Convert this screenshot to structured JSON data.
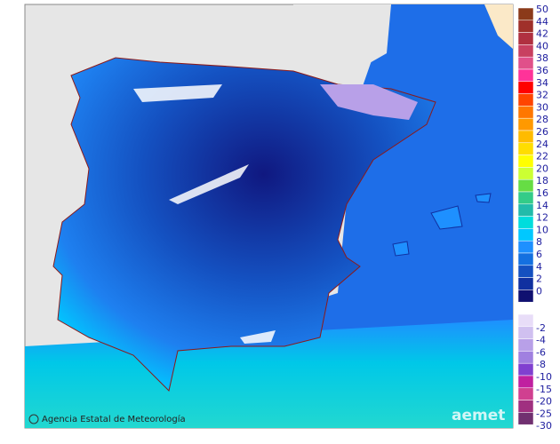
{
  "map": {
    "credit": "Agencia Estatal de Meteorología",
    "logo": "aemet",
    "legend": {
      "upper": [
        {
          "label": 50,
          "color": "#8b3a1a"
        },
        {
          "label": 44,
          "color": "#a0302a"
        },
        {
          "label": 42,
          "color": "#b03040"
        },
        {
          "label": 40,
          "color": "#c84060"
        },
        {
          "label": 38,
          "color": "#e0508a"
        },
        {
          "label": 36,
          "color": "#ff3399"
        },
        {
          "label": 34,
          "color": "#ff0000"
        },
        {
          "label": 32,
          "color": "#ff4500"
        },
        {
          "label": 30,
          "color": "#ff7700"
        },
        {
          "label": 28,
          "color": "#ff9900"
        },
        {
          "label": 26,
          "color": "#ffbb00"
        },
        {
          "label": 24,
          "color": "#ffdd00"
        },
        {
          "label": 22,
          "color": "#ffff00"
        },
        {
          "label": 20,
          "color": "#ccff33"
        },
        {
          "label": 18,
          "color": "#66dd44"
        },
        {
          "label": 16,
          "color": "#33cc88"
        },
        {
          "label": 14,
          "color": "#22bbaa"
        },
        {
          "label": 12,
          "color": "#00dddd"
        },
        {
          "label": 10,
          "color": "#00c8ff"
        },
        {
          "label": 8,
          "color": "#1e90ff"
        },
        {
          "label": 6,
          "color": "#1470e0"
        },
        {
          "label": 4,
          "color": "#1450c0"
        },
        {
          "label": 2,
          "color": "#1030a0"
        },
        {
          "label": 0,
          "color": "#101070"
        }
      ],
      "lower": [
        {
          "label": -2,
          "color": "#e8ddf8"
        },
        {
          "label": -4,
          "color": "#d0c0f0"
        },
        {
          "label": -6,
          "color": "#b8a0e8"
        },
        {
          "label": -8,
          "color": "#a080e0"
        },
        {
          "label": -10,
          "color": "#8040d0"
        },
        {
          "label": -15,
          "color": "#c020a0"
        },
        {
          "label": -20,
          "color": "#d04090"
        },
        {
          "label": -25,
          "color": "#a03080"
        },
        {
          "label": -30,
          "color": "#703070"
        }
      ]
    }
  }
}
